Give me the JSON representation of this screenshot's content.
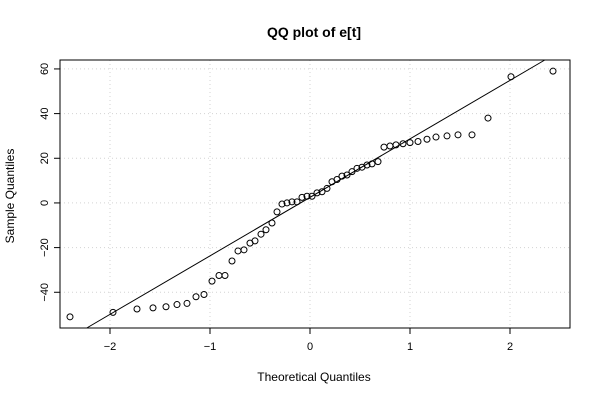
{
  "chart_data": {
    "type": "scatter",
    "title": "QQ plot of e[t]",
    "xlabel": "Theoretical Quantiles",
    "ylabel": "Sample Quantiles",
    "xlim": [
      -2.5,
      2.6
    ],
    "ylim": [
      -56,
      64
    ],
    "x_ticks": [
      -2,
      -1,
      0,
      1,
      2
    ],
    "x_tick_labels": [
      "−2",
      "−1",
      "0",
      "1",
      "2"
    ],
    "y_ticks": [
      -40,
      -20,
      0,
      20,
      40,
      60
    ],
    "y_tick_labels": [
      "−40",
      "−20",
      "0",
      "20",
      "40",
      "60"
    ],
    "grid": true,
    "reference_line": {
      "x": [
        -2.5,
        2.6
      ],
      "y": [
        -63.0,
        70.6
      ]
    },
    "points": {
      "x": [
        -2.4,
        -1.97,
        -1.73,
        -1.57,
        -1.44,
        -1.33,
        -1.23,
        -1.14,
        -1.06,
        -0.98,
        -0.91,
        -0.85,
        -0.78,
        -0.72,
        -0.66,
        -0.6,
        -0.55,
        -0.49,
        -0.44,
        -0.38,
        -0.33,
        -0.28,
        -0.23,
        -0.18,
        -0.13,
        -0.08,
        -0.03,
        0.02,
        0.07,
        0.12,
        0.17,
        0.22,
        0.27,
        0.32,
        0.37,
        0.42,
        0.47,
        0.52,
        0.57,
        0.62,
        0.68,
        0.74,
        0.8,
        0.86,
        0.93,
        1.0,
        1.08,
        1.17,
        1.26,
        1.37,
        1.48,
        1.62,
        1.78,
        2.01,
        2.43
      ],
      "y": [
        -51,
        -49,
        -47.5,
        -47,
        -46.5,
        -45.5,
        -45,
        -42,
        -41,
        -35,
        -32.5,
        -32.5,
        -26,
        -21.5,
        -21,
        -18,
        -17,
        -14,
        -12,
        -9,
        -4,
        -0.5,
        0,
        0.5,
        0.5,
        2.5,
        3,
        3,
        4.5,
        5,
        6.5,
        9.5,
        10.5,
        12,
        12.5,
        14,
        15.5,
        16,
        17,
        17.5,
        18.5,
        25,
        25.5,
        26,
        26.5,
        27,
        27.5,
        28.5,
        29.5,
        30,
        30.5,
        30.5,
        38,
        56.5,
        59
      ]
    }
  }
}
